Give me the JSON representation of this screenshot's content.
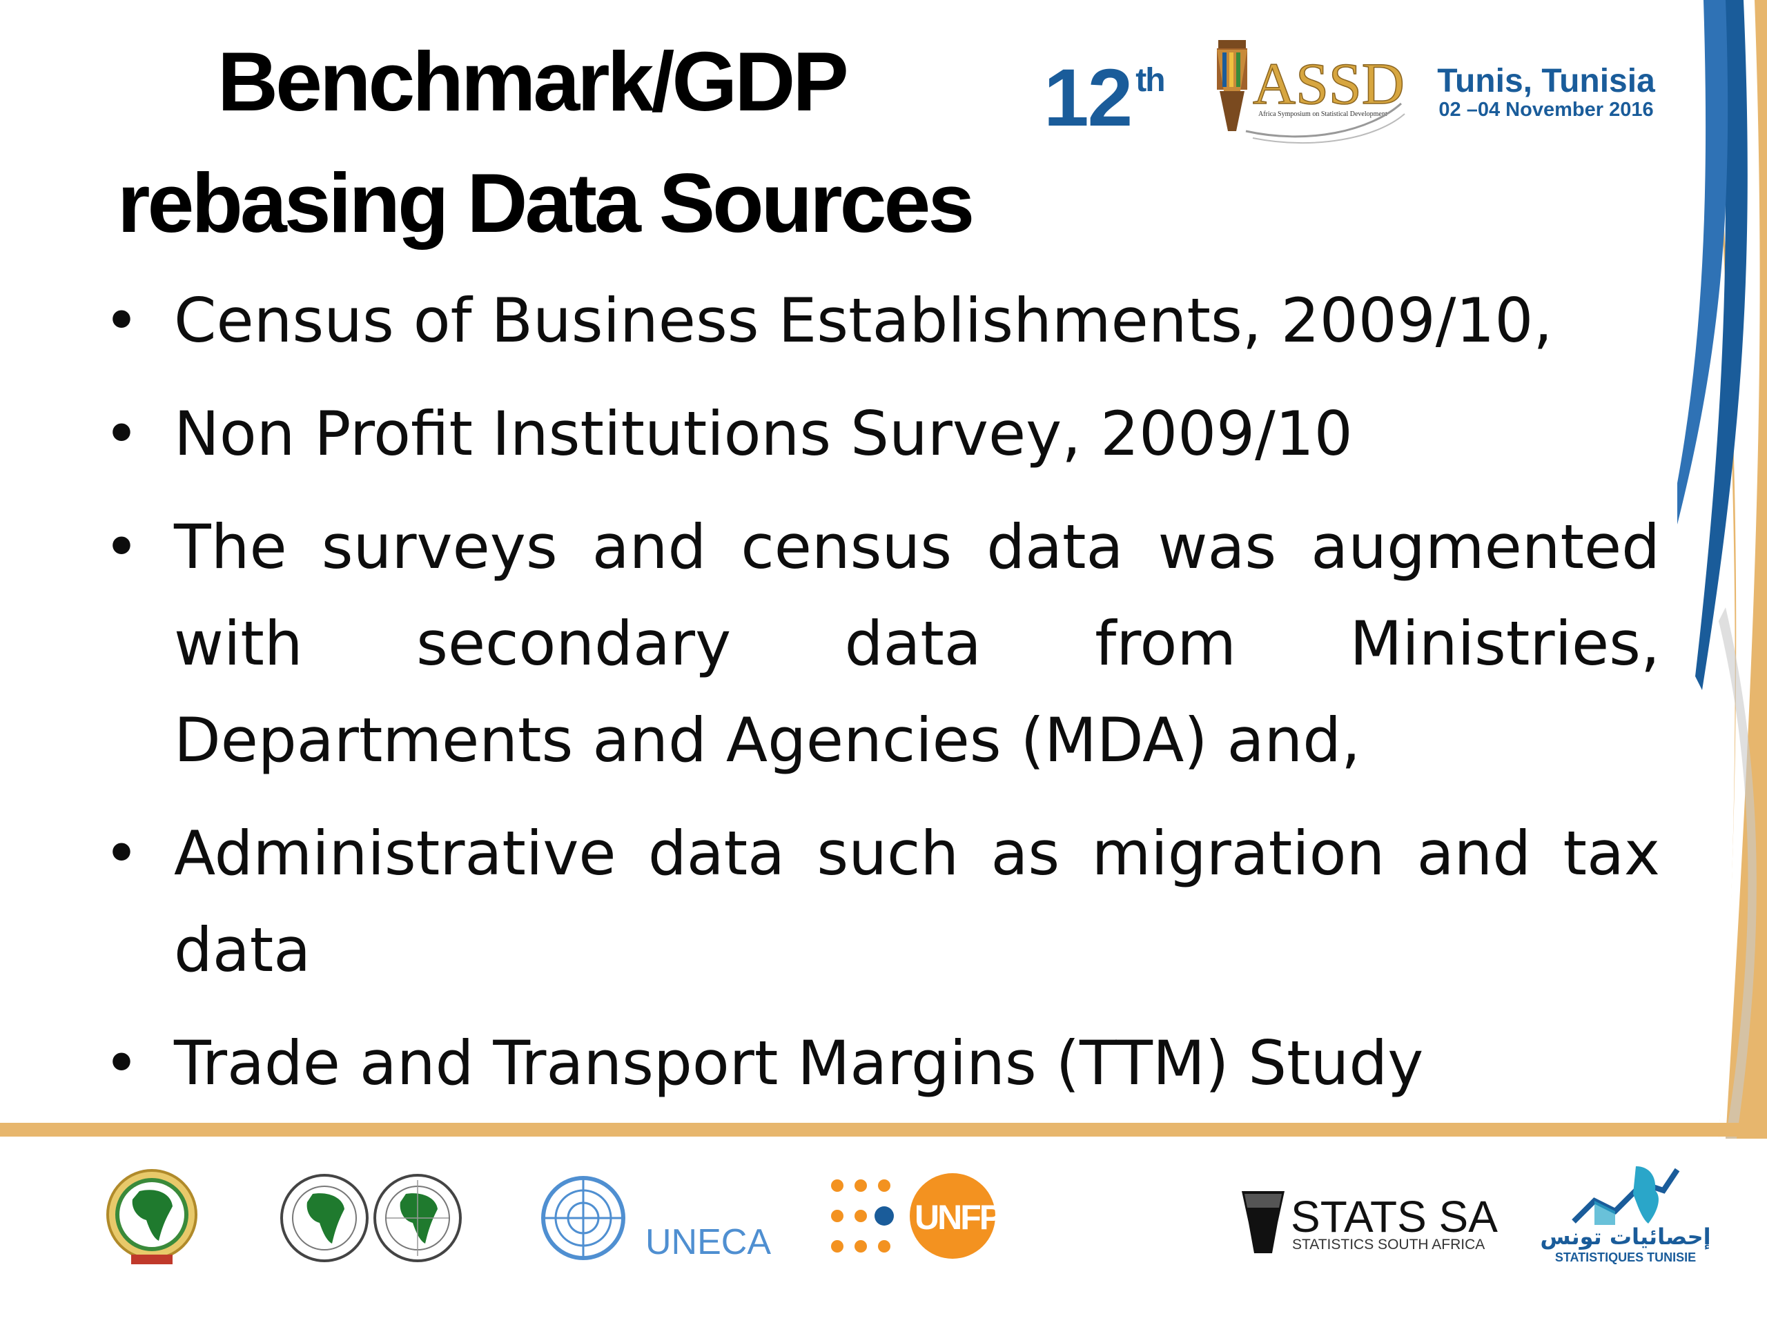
{
  "slide": {
    "title_line1": "Benchmark/GDP",
    "title_line2": "rebasing Data Sources"
  },
  "event": {
    "number": "12",
    "suffix": "th",
    "logo_text": "ASSD",
    "logo_subtitle": "Africa Symposium on Statistical Development",
    "city": "Tunis, Tunisia",
    "dates": "02 –04 November 2016"
  },
  "bullets": [
    "Census of Business Establishments, 2009/10,",
    "Non Profit Institutions Survey, 2009/10",
    "The surveys and census data was augmented with secondary data from Ministries, Departments and Agencies (MDA) and,",
    "Administrative data such as migration and tax data",
    "Trade and Transport Margins (TTM) Study"
  ],
  "footer": {
    "logos": [
      {
        "icon": "african-union-emblem"
      },
      {
        "icon": "african-development-bank-emblem"
      },
      {
        "icon": "african-development-fund-emblem"
      },
      {
        "icon": "united-nations-emblem",
        "label": "UNECA"
      },
      {
        "icon": "unfpa-dots",
        "label": "UNFPA"
      },
      {
        "icon": "stats-sa-drum",
        "label": "STATS SA",
        "sublabel": "STATISTICS SOUTH AFRICA"
      },
      {
        "icon": "statistiques-tunisie-map",
        "label": "إحصائيات تونس",
        "sublabel": "STATISTIQUES TUNISIE"
      }
    ]
  },
  "colors": {
    "accent_blue": "#1a5c9a",
    "accent_gold": "#e7b66d",
    "unfpa_orange": "#f39220",
    "uneca_blue": "#4f8fd1"
  }
}
